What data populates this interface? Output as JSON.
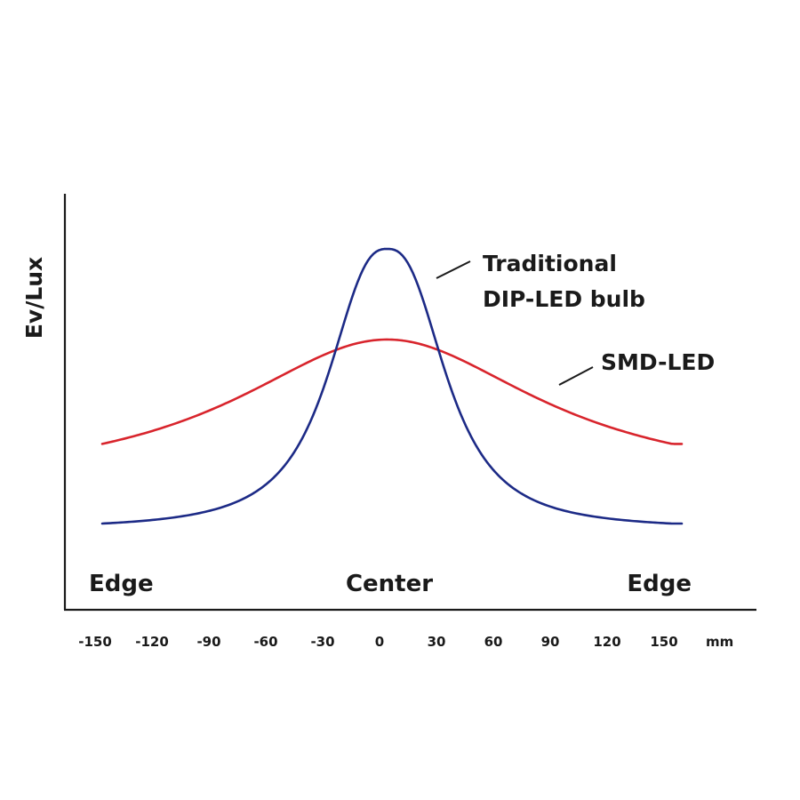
{
  "chart_data": {
    "type": "line",
    "title": "",
    "xlabel": "",
    "ylabel": "Ev/Lux",
    "x_unit": "mm",
    "x_ticks": [
      -150,
      -120,
      -90,
      -60,
      -30,
      0,
      30,
      60,
      90,
      120,
      150
    ],
    "xlim": [
      -150,
      150
    ],
    "grid": false,
    "y_ticks_shown": false,
    "region_labels": {
      "left": "Edge",
      "center": "Center",
      "right": "Edge"
    },
    "series": [
      {
        "name_lines": [
          "Traditional",
          "DIP-LED bulb"
        ],
        "color": "#1c2a86",
        "peak_x": 4,
        "peak_y": 1.0,
        "edge_y": 0.0,
        "profile": "narrow",
        "x": [
          -150,
          -120,
          -90,
          -60,
          -45,
          -30,
          -15,
          0,
          4,
          15,
          30,
          45,
          60,
          90,
          120,
          150
        ],
        "y": [
          0.0,
          0.03,
          0.11,
          0.27,
          0.42,
          0.64,
          0.9,
          0.99,
          1.0,
          0.93,
          0.7,
          0.47,
          0.3,
          0.12,
          0.04,
          0.0
        ]
      },
      {
        "name": "SMD-LED",
        "color": "#d8242c",
        "peak_x": 4,
        "peak_y": 0.67,
        "edge_y": 0.29,
        "profile": "wide",
        "x": [
          -150,
          -120,
          -90,
          -60,
          -30,
          0,
          4,
          30,
          60,
          90,
          120,
          150
        ],
        "y": [
          0.29,
          0.38,
          0.47,
          0.57,
          0.645,
          0.668,
          0.67,
          0.655,
          0.6,
          0.5,
          0.4,
          0.29
        ]
      }
    ]
  }
}
